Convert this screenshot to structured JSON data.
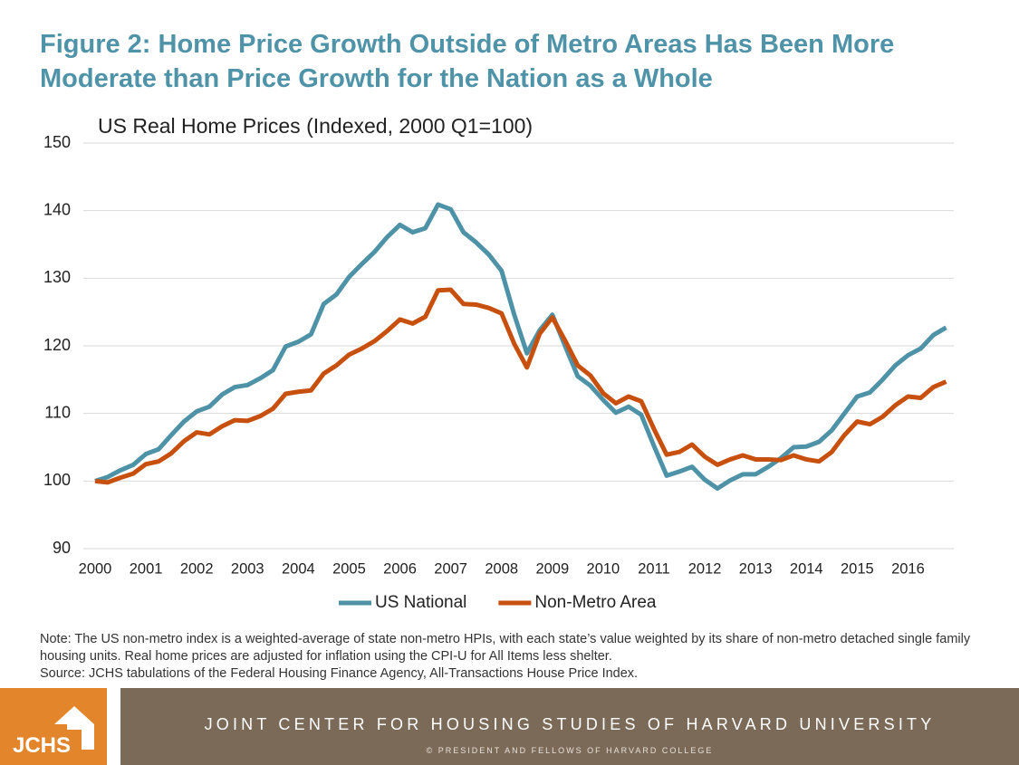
{
  "chart_data": {
    "type": "line",
    "title": "Figure 2: Home Price Growth Outside of Metro Areas Has Been More Moderate than Price Growth for the Nation as a Whole",
    "subtitle": "US Real Home Prices (Indexed, 2000 Q1=100)",
    "x": [
      2000,
      2000.25,
      2000.5,
      2000.75,
      2001,
      2001.25,
      2001.5,
      2001.75,
      2002,
      2002.25,
      2002.5,
      2002.75,
      2003,
      2003.25,
      2003.5,
      2003.75,
      2004,
      2004.25,
      2004.5,
      2004.75,
      2005,
      2005.25,
      2005.5,
      2005.75,
      2006,
      2006.25,
      2006.5,
      2006.75,
      2007,
      2007.25,
      2007.5,
      2007.75,
      2008,
      2008.25,
      2008.5,
      2008.75,
      2009,
      2009.25,
      2009.5,
      2009.75,
      2010,
      2010.25,
      2010.5,
      2010.75,
      2011,
      2011.25,
      2011.5,
      2011.75,
      2012,
      2012.25,
      2012.5,
      2012.75,
      2013,
      2013.25,
      2013.5,
      2013.75,
      2014,
      2014.25,
      2014.5,
      2014.75,
      2015,
      2015.25,
      2015.5,
      2015.75,
      2016,
      2016.25,
      2016.5,
      2016.75
    ],
    "series": [
      {
        "name": "US National",
        "color": "#4e92a8",
        "values": [
          100,
          100.6,
          101.6,
          102.4,
          104,
          104.7,
          106.8,
          108.8,
          110.3,
          111,
          112.8,
          113.9,
          114.2,
          115.2,
          116.4,
          119.9,
          120.6,
          121.7,
          126.2,
          127.6,
          130.2,
          132.1,
          133.9,
          136.1,
          137.9,
          136.8,
          137.4,
          140.9,
          140.2,
          136.8,
          135.3,
          133.5,
          131.1,
          124.6,
          118.9,
          122.3,
          124.6,
          120,
          115.5,
          114.1,
          112,
          110.1,
          111,
          109.8,
          105.2,
          100.8,
          101.4,
          102.1,
          100.2,
          98.9,
          100.1,
          101,
          101,
          102.1,
          103.4,
          105,
          105.1,
          105.8,
          107.5,
          110,
          112.5,
          113.1,
          115,
          117.1,
          118.6,
          119.6,
          121.6,
          122.7
        ]
      },
      {
        "name": "Non-Metro Area",
        "color": "#c8500e",
        "values": [
          100,
          99.8,
          100.5,
          101.1,
          102.5,
          102.9,
          104.1,
          105.9,
          107.2,
          106.9,
          108.1,
          109,
          108.9,
          109.6,
          110.7,
          112.9,
          113.2,
          113.4,
          115.9,
          117.1,
          118.7,
          119.6,
          120.7,
          122.2,
          123.9,
          123.3,
          124.3,
          128.2,
          128.3,
          126.2,
          126.1,
          125.6,
          124.8,
          120.3,
          116.8,
          121.8,
          124.2,
          120.8,
          117.1,
          115.6,
          113,
          111.5,
          112.5,
          111.8,
          107.7,
          103.9,
          104.3,
          105.4,
          103.6,
          102.4,
          103.2,
          103.8,
          103.2,
          103.2,
          103.1,
          103.8,
          103.2,
          102.9,
          104.3,
          106.8,
          108.8,
          108.4,
          109.5,
          111.2,
          112.5,
          112.3,
          113.9,
          114.7
        ]
      }
    ],
    "xlim": [
      2000,
      2016.75
    ],
    "xticks": [
      2000,
      2001,
      2002,
      2003,
      2004,
      2005,
      2006,
      2007,
      2008,
      2009,
      2010,
      2011,
      2012,
      2013,
      2014,
      2015,
      2016
    ],
    "ylim": [
      90,
      150
    ],
    "yticks": [
      90,
      100,
      110,
      120,
      130,
      140,
      150
    ],
    "grid": true,
    "legend": "bottom",
    "notes": [
      "Note: The US non-metro index is a weighted-average of state non-metro HPIs, with each state’s value weighted by its share of non-metro detached single family housing units. Real home prices are adjusted for inflation using the CPI-U for All Items less shelter.",
      "Source: JCHS tabulations of the Federal Housing Finance Agency, All-Transactions House Price Index."
    ]
  },
  "footer": {
    "logo": "JCHS",
    "organization": "JOINT CENTER FOR HOUSING STUDIES OF HARVARD UNIVERSITY",
    "copyright": "© PRESIDENT AND FELLOWS OF HARVARD COLLEGE"
  }
}
